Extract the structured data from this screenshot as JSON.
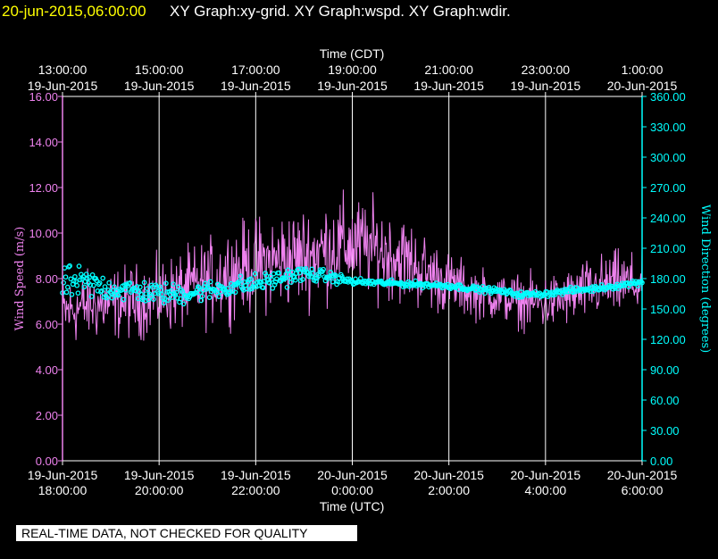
{
  "header": {
    "timestamp": "20-jun-2015,06:00:00",
    "graphs": "XY Graph:xy-grid.  XY Graph:wspd.  XY Graph:wdir."
  },
  "notice": "REAL-TIME DATA, NOT CHECKED FOR QUALITY",
  "colors": {
    "timestamp": "#ffff00",
    "text": "#ffffff",
    "wind_speed": "#ee82ee",
    "wind_direction": "#00ffff",
    "grid": "#ffffff"
  },
  "chart_data": {
    "type": "line",
    "top_axis": {
      "title": "Time (CDT)",
      "ticks": [
        {
          "time": "13:00:00",
          "date": "19-Jun-2015"
        },
        {
          "time": "15:00:00",
          "date": "19-Jun-2015"
        },
        {
          "time": "17:00:00",
          "date": "19-Jun-2015"
        },
        {
          "time": "19:00:00",
          "date": "19-Jun-2015"
        },
        {
          "time": "21:00:00",
          "date": "19-Jun-2015"
        },
        {
          "time": "23:00:00",
          "date": "19-Jun-2015"
        },
        {
          "time": "1:00:00",
          "date": "20-Jun-2015"
        }
      ]
    },
    "bottom_axis": {
      "title": "Time (UTC)",
      "range": [
        "19-Jun-2015 18:00:00",
        "20-Jun-2015 6:00:00"
      ],
      "ticks": [
        {
          "date": "19-Jun-2015",
          "time": "18:00:00"
        },
        {
          "date": "19-Jun-2015",
          "time": "20:00:00"
        },
        {
          "date": "19-Jun-2015",
          "time": "22:00:00"
        },
        {
          "date": "20-Jun-2015",
          "time": "0:00:00"
        },
        {
          "date": "20-Jun-2015",
          "time": "2:00:00"
        },
        {
          "date": "20-Jun-2015",
          "time": "4:00:00"
        },
        {
          "date": "20-Jun-2015",
          "time": "6:00:00"
        }
      ]
    },
    "left_axis": {
      "title": "Wind Speed (m/s)",
      "range": [
        0,
        16
      ],
      "ticks": [
        "0.00",
        "2.00",
        "4.00",
        "6.00",
        "8.00",
        "10.00",
        "12.00",
        "14.00",
        "16.00"
      ]
    },
    "right_axis": {
      "title": "Wind Direction (degrees)",
      "range": [
        0,
        360
      ],
      "ticks": [
        "0.00",
        "30.00",
        "60.00",
        "90.00",
        "120.00",
        "150.00",
        "180.00",
        "210.00",
        "240.00",
        "270.00",
        "300.00",
        "330.00",
        "360.00"
      ]
    },
    "grid": "vertical lines at each bottom-axis tick",
    "series": [
      {
        "name": "wspd",
        "style": "line",
        "axis": "left",
        "x": [
          "18:00",
          "18:30",
          "19:00",
          "19:30",
          "20:00",
          "20:30",
          "21:00",
          "21:30",
          "22:00",
          "22:30",
          "23:00",
          "23:30",
          "0:00",
          "0:30",
          "1:00",
          "1:30",
          "2:00",
          "2:30",
          "3:00",
          "3:30",
          "4:00",
          "4:30",
          "5:00",
          "5:30",
          "6:00"
        ],
        "values": [
          6.5,
          6.8,
          6.9,
          7.0,
          7.2,
          7.5,
          7.8,
          8.3,
          8.6,
          8.8,
          9.0,
          9.3,
          9.5,
          9.3,
          8.9,
          8.3,
          7.8,
          7.4,
          7.2,
          7.0,
          6.9,
          7.2,
          7.6,
          7.8,
          7.7
        ],
        "variability": [
          1.7,
          1.7,
          1.7,
          1.8,
          1.8,
          1.9,
          2.1,
          2.2,
          2.3,
          2.4,
          2.4,
          2.5,
          2.4,
          2.3,
          2.2,
          1.9,
          1.5,
          1.3,
          1.2,
          1.3,
          1.4,
          1.4,
          1.5,
          1.6,
          1.5
        ]
      },
      {
        "name": "wdir",
        "style": "circles",
        "axis": "right",
        "x": [
          "18:00",
          "18:30",
          "19:00",
          "19:30",
          "20:00",
          "20:30",
          "21:00",
          "21:30",
          "22:00",
          "22:30",
          "23:00",
          "23:30",
          "0:00",
          "0:30",
          "1:00",
          "1:30",
          "2:00",
          "2:30",
          "3:00",
          "3:30",
          "4:00",
          "4:30",
          "5:00",
          "5:30",
          "6:00"
        ],
        "values": [
          176,
          175,
          170,
          168,
          165,
          165,
          168,
          172,
          175,
          180,
          185,
          182,
          177,
          176,
          175,
          174,
          173,
          170,
          168,
          164,
          165,
          168,
          170,
          173,
          177
        ],
        "variability": [
          18,
          16,
          13,
          12,
          11,
          11,
          10,
          10,
          10,
          9,
          8,
          6,
          4,
          3,
          3,
          3,
          3,
          3,
          3,
          3,
          3,
          3,
          3,
          3,
          3
        ]
      }
    ]
  }
}
